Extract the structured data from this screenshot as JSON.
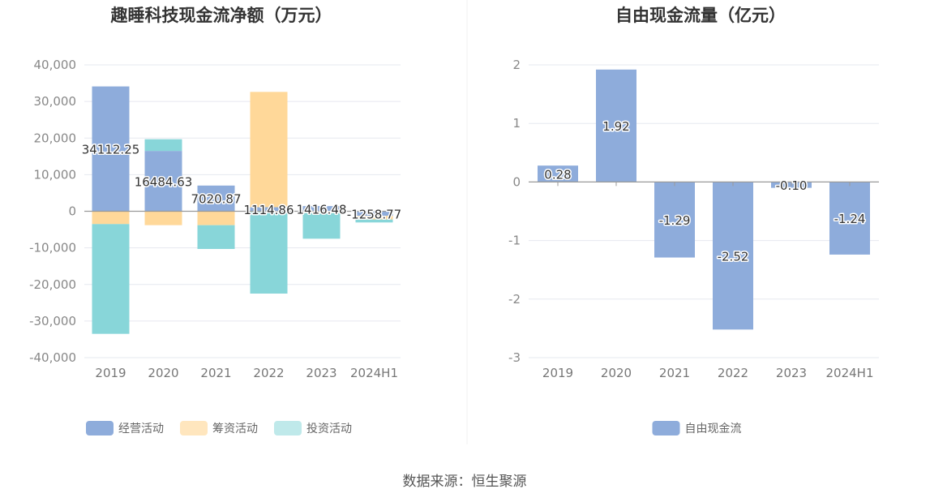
{
  "source_label": "数据来源：恒生聚源",
  "chart_data": [
    {
      "type": "bar",
      "stacked": true,
      "title": "趣睡科技现金流净额（万元）",
      "categories": [
        "2019",
        "2020",
        "2021",
        "2022",
        "2023",
        "2024H1"
      ],
      "ylim": [
        -40000,
        40000
      ],
      "yticks": [
        40000,
        30000,
        20000,
        10000,
        0,
        -10000,
        -20000,
        -30000,
        -40000
      ],
      "ytick_labels": [
        "40,000",
        "30,000",
        "20,000",
        "10,000",
        "0",
        "-10,000",
        "-20,000",
        "-30,000",
        "-40,000"
      ],
      "grid": true,
      "legend_position": "bottom",
      "series": [
        {
          "name": "经营活动",
          "color": "#8eacdb",
          "values": [
            34112.25,
            16484.63,
            7020.87,
            1114.86,
            1416.48,
            -1258.77
          ]
        },
        {
          "name": "筹资活动",
          "color": "#ffd899",
          "values": [
            -3500,
            -3800,
            -3800,
            31500,
            -500,
            -1000
          ]
        },
        {
          "name": "投资活动",
          "color": "#88d6d9",
          "values": [
            -30000,
            3200,
            -6500,
            -22500,
            -7000,
            -800
          ]
        }
      ],
      "data_labels": [
        "34112.25",
        "16484.63",
        "7020.87",
        "1114.86",
        "1416.48",
        "-1258.77"
      ]
    },
    {
      "type": "bar",
      "title": "自由现金流量（亿元）",
      "categories": [
        "2019",
        "2020",
        "2021",
        "2022",
        "2023",
        "2024H1"
      ],
      "ylim": [
        -3,
        2
      ],
      "yticks": [
        2,
        1,
        0,
        -1,
        -2,
        -3
      ],
      "ytick_labels": [
        "2",
        "1",
        "0",
        "-1",
        "-2",
        "-3"
      ],
      "grid": true,
      "legend_position": "bottom",
      "series": [
        {
          "name": "自由现金流",
          "color": "#8eacdb",
          "values": [
            0.28,
            1.92,
            -1.29,
            -2.52,
            -0.1,
            -1.24
          ]
        }
      ],
      "data_labels": [
        "0.28",
        "1.92",
        "-1.29",
        "-2.52",
        "-0.10",
        "-1.24"
      ]
    }
  ]
}
